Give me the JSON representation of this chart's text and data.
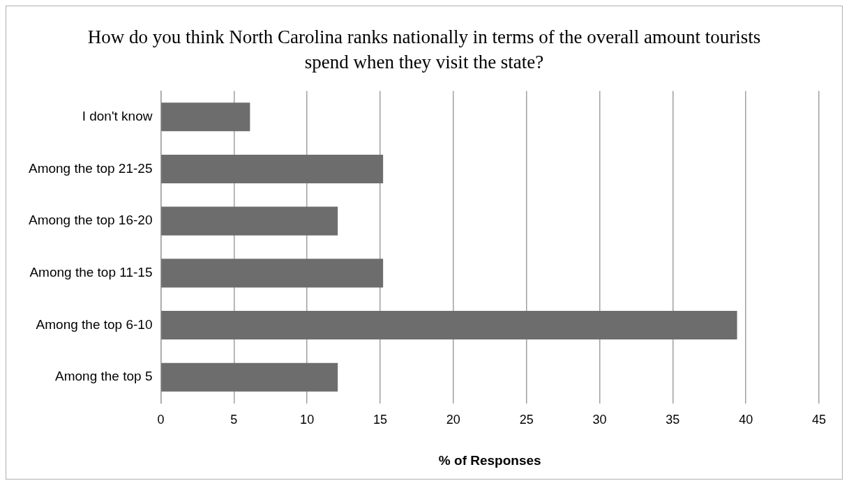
{
  "chart_data": {
    "type": "bar",
    "orientation": "horizontal",
    "title": "How do you think North Carolina ranks nationally in terms of the overall amount tourists spend when they visit the state?",
    "categories": [
      "I don't know",
      "Among the top 21-25",
      "Among the top 16-20",
      "Among the top 11-15",
      "Among the top 6-10",
      "Among the top 5"
    ],
    "values": [
      6.1,
      15.2,
      12.1,
      15.2,
      39.4,
      12.1
    ],
    "color": "#6d6d6d",
    "xlabel": "% of Responses",
    "xlim": [
      0,
      45
    ],
    "xticks": [
      0,
      5,
      10,
      15,
      20,
      25,
      30,
      35,
      40,
      45
    ],
    "grid": "x",
    "legend": false
  }
}
